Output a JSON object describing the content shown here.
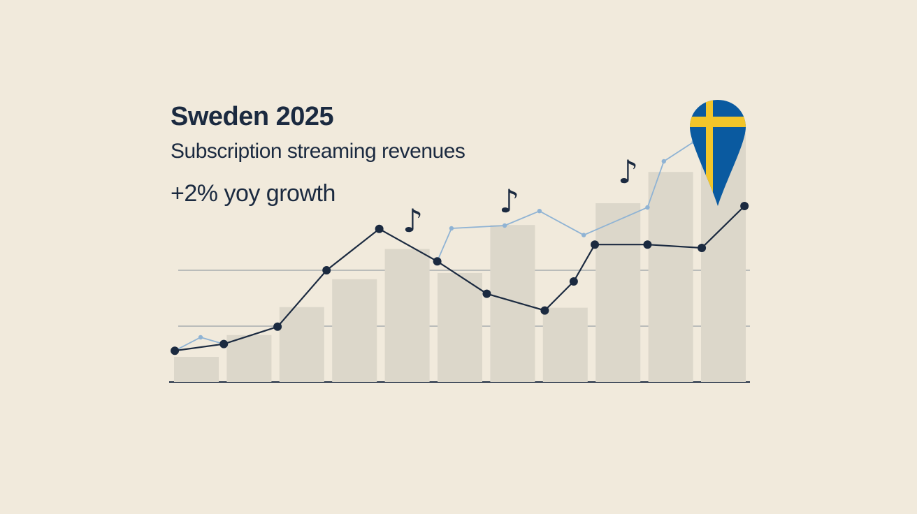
{
  "title": "Sweden 2025",
  "subtitle": "Subscription streaming revenues",
  "growth_label": "+2% yoy growth",
  "colors": {
    "background": "#f1eadc",
    "bars": "#dcd7ca",
    "dark_line": "#1b2a40",
    "light_line": "#8fb3d4",
    "flag_blue": "#0a5aa0",
    "flag_yellow": "#f2c52a"
  },
  "icons": [
    "music-note-icon",
    "music-note-icon",
    "music-note-icon",
    "sweden-flag-map-pin-icon"
  ],
  "chart_data": {
    "type": "bar",
    "title": "",
    "xlabel": "",
    "ylabel": "",
    "ylim": [
      0,
      4.6
    ],
    "xlim": [
      -0.5,
      10.5
    ],
    "grid": true,
    "gridlines": [
      1,
      2
    ],
    "bars": {
      "x": [
        0,
        1,
        2,
        3,
        4,
        5,
        6,
        7,
        8,
        9,
        10
      ],
      "values": [
        0.45,
        0.84,
        1.34,
        1.84,
        2.38,
        1.95,
        2.81,
        1.33,
        3.2,
        3.76,
        4.46
      ]
    },
    "series": [
      {
        "type": "line",
        "style": "dark",
        "x": [
          -0.41,
          0.52,
          1.54,
          2.47,
          3.47,
          4.57,
          5.51,
          6.61,
          7.16,
          7.56,
          8.56,
          9.59,
          10.4
        ],
        "y": [
          0.56,
          0.68,
          0.99,
          2.0,
          2.74,
          2.16,
          1.58,
          1.28,
          1.8,
          2.46,
          2.46,
          2.4,
          3.15
        ]
      },
      {
        "type": "line",
        "style": "light",
        "x": [
          -0.41,
          0.08,
          0.52
        ],
        "y": [
          0.56,
          0.8,
          0.68
        ]
      },
      {
        "type": "line",
        "style": "light",
        "x": [
          4.57,
          4.84,
          5.85,
          6.51,
          7.35,
          8.56,
          8.87,
          9.44
        ],
        "y": [
          2.16,
          2.75,
          2.8,
          3.06,
          2.63,
          3.125,
          3.95,
          4.3
        ]
      }
    ]
  }
}
